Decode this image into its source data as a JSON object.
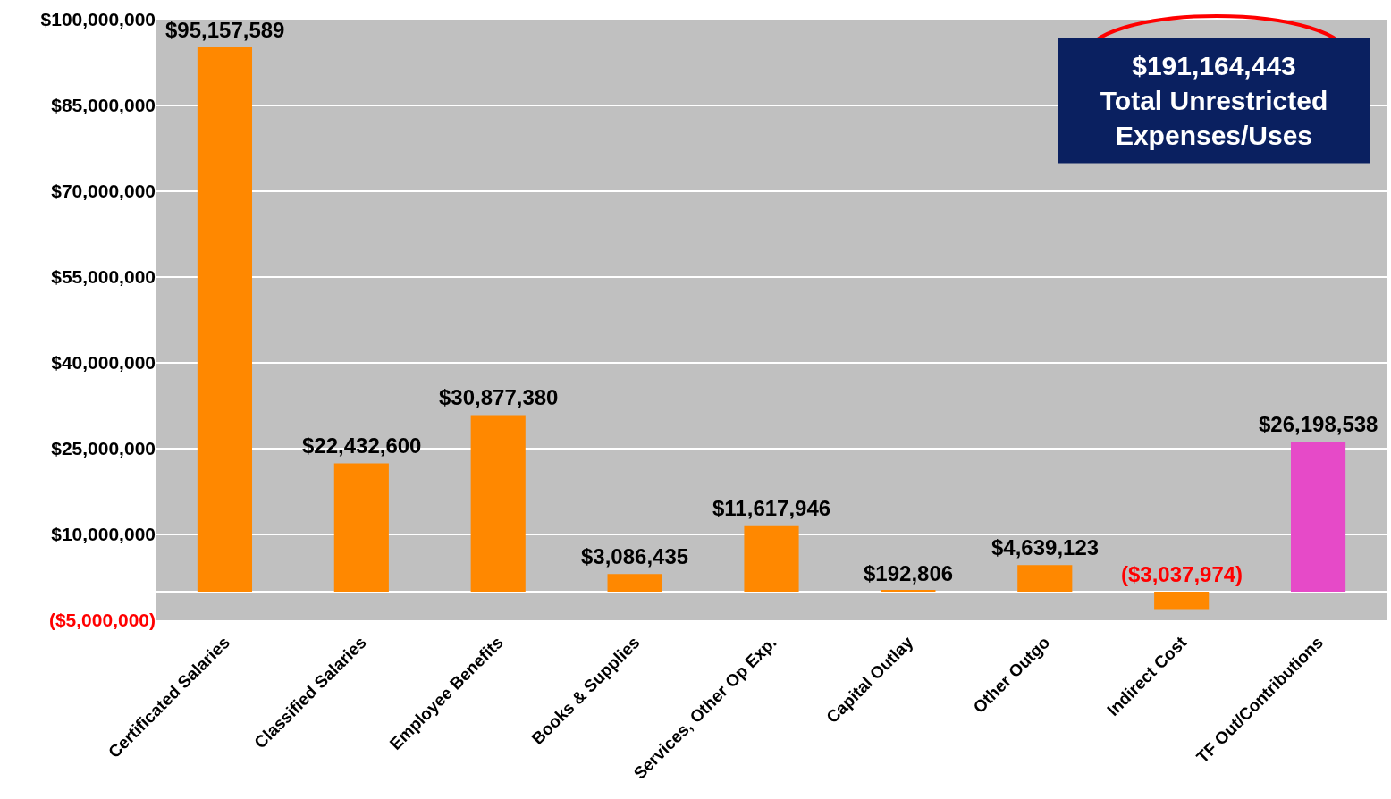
{
  "chart_data": {
    "type": "bar",
    "categories": [
      "Certificated Salaries",
      "Classified Salaries",
      "Employee Benefits",
      "Books & Supplies",
      "Services, Other Op Exp.",
      "Capital Outlay",
      "Other Outgo",
      "Indirect Cost",
      "TF Out/Contributions"
    ],
    "values": [
      95157589,
      22432600,
      30877380,
      3086435,
      11617946,
      192806,
      4639123,
      -3037974,
      26198538
    ],
    "colors": [
      "#ff8800",
      "#ff8800",
      "#ff8800",
      "#ff8800",
      "#ff8800",
      "#ff8800",
      "#ff8800",
      "#ff8800",
      "#e64ac8"
    ],
    "value_labels": [
      "$95,157,589",
      "$22,432,600",
      "$30,877,380",
      "$3,086,435",
      "$11,617,946",
      "$192,806",
      "$4,639,123",
      "($3,037,974)",
      "$26,198,538"
    ],
    "ylim": [
      -5000000,
      100000000
    ],
    "yticks": [
      {
        "value": -5000000,
        "label": "($5,000,000)"
      },
      {
        "value": 10000000,
        "label": "$10,000,000"
      },
      {
        "value": 25000000,
        "label": "$25,000,000"
      },
      {
        "value": 40000000,
        "label": "$40,000,000"
      },
      {
        "value": 55000000,
        "label": "$55,000,000"
      },
      {
        "value": 70000000,
        "label": "$70,000,000"
      },
      {
        "value": 85000000,
        "label": "$85,000,000"
      },
      {
        "value": 100000000,
        "label": "$100,000,000"
      }
    ],
    "grid": "y",
    "annotations": [
      "$191,164,443\nTotal Unrestricted\nExpenses/Uses"
    ]
  }
}
